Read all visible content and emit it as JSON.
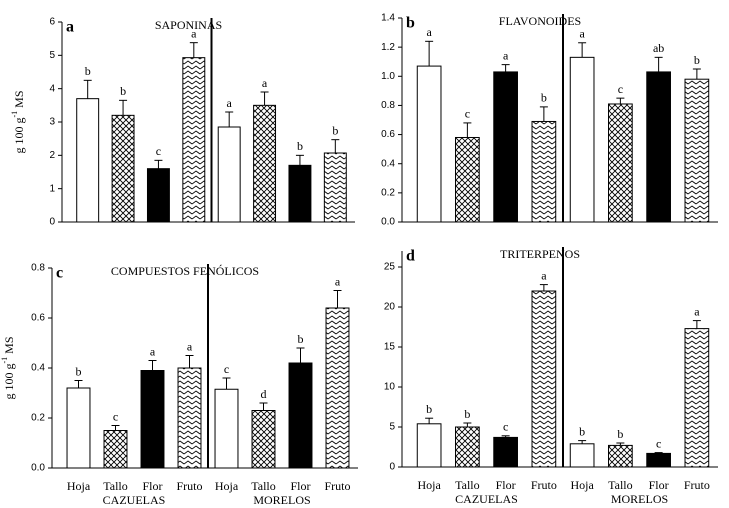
{
  "chart_data": [
    {
      "type": "bar",
      "panel_label": "a",
      "title": "SAPONINAS",
      "ylabel": "g 100 g",
      "ylabel_sup": "-1",
      "ylabel_end": "MS",
      "categories": [
        null,
        null,
        null,
        null,
        null,
        null,
        null,
        null
      ],
      "values": [
        3.7,
        3.2,
        1.6,
        4.93,
        2.85,
        3.5,
        1.7,
        2.07
      ],
      "errors": [
        0.55,
        0.45,
        0.25,
        0.45,
        0.45,
        0.4,
        0.3,
        0.4
      ],
      "letters": [
        "b",
        "b",
        "c",
        "a",
        "a",
        "a",
        "b",
        "b"
      ],
      "patterns": [
        "open",
        "crosshatch",
        "solid",
        "zigzag",
        "open",
        "crosshatch",
        "solid",
        "zigzag"
      ],
      "color": "#000000",
      "ylim": [
        0,
        6
      ],
      "yticks": [
        0,
        1,
        2,
        3,
        4,
        5,
        6
      ]
    },
    {
      "type": "bar",
      "panel_label": "b",
      "title": "FLAVONOIDES",
      "categories": [
        null,
        null,
        null,
        null,
        null,
        null,
        null,
        null
      ],
      "values": [
        1.07,
        0.58,
        1.03,
        0.69,
        1.13,
        0.81,
        1.03,
        0.98
      ],
      "errors": [
        0.17,
        0.1,
        0.05,
        0.1,
        0.1,
        0.04,
        0.1,
        0.07
      ],
      "letters": [
        "a",
        "c",
        "a",
        "b",
        "a",
        "c",
        "ab",
        "b"
      ],
      "patterns": [
        "open",
        "crosshatch",
        "solid",
        "zigzag",
        "open",
        "crosshatch",
        "solid",
        "zigzag"
      ],
      "color": "#000000",
      "ylim": [
        0,
        1.4
      ],
      "yticks": [
        {
          "value": 0,
          "label": "0.0"
        },
        0.2,
        0.4,
        0.6,
        0.8,
        {
          "value": 1,
          "label": "1.0"
        },
        1.2,
        1.4
      ]
    },
    {
      "type": "bar",
      "panel_label": "c",
      "title": "COMPUESTOS FENÓLICOS",
      "ylabel": "g 100 g",
      "ylabel_sup": "-1",
      "ylabel_end": "MS",
      "categories": [
        "Hoja",
        "Tallo",
        "Flor",
        "Fruto",
        "Hoja",
        "Tallo",
        "Flor",
        "Fruto"
      ],
      "groups": [
        "CAZUELAS",
        "MORELOS"
      ],
      "values": [
        0.32,
        0.15,
        0.39,
        0.4,
        0.315,
        0.23,
        0.42,
        0.64
      ],
      "errors": [
        0.03,
        0.02,
        0.04,
        0.05,
        0.045,
        0.03,
        0.06,
        0.07
      ],
      "letters": [
        "b",
        "c",
        "a",
        "a",
        "c",
        "d",
        "b",
        "a"
      ],
      "patterns": [
        "open",
        "crosshatch",
        "solid",
        "zigzag",
        "open",
        "crosshatch",
        "solid",
        "zigzag"
      ],
      "color": "#000000",
      "ylim": [
        0,
        0.8
      ],
      "yticks": [
        {
          "value": 0,
          "label": "0.0"
        },
        0.2,
        0.4,
        0.6,
        0.8
      ]
    },
    {
      "type": "bar",
      "panel_label": "d",
      "title": "TRITERPENOS",
      "categories": [
        "Hoja",
        "Tallo",
        "Flor",
        "Fruto",
        "Hoja",
        "Tallo",
        "Flor",
        "Fruto"
      ],
      "groups": [
        "CAZUELAS",
        "MORELOS"
      ],
      "values": [
        5.4,
        5.0,
        3.7,
        22,
        2.9,
        2.7,
        1.7,
        17.3
      ],
      "errors": [
        0.7,
        0.5,
        0.2,
        0.8,
        0.4,
        0.3,
        0.1,
        1.0
      ],
      "letters": [
        "b",
        "b",
        "c",
        "a",
        "b",
        "b",
        "c",
        "a"
      ],
      "patterns": [
        "open",
        "crosshatch",
        "solid",
        "zigzag",
        "open",
        "crosshatch",
        "solid",
        "zigzag"
      ],
      "color": "#000000",
      "ylim": [
        0,
        27
      ],
      "yticks": [
        0,
        5,
        10,
        15,
        20,
        25
      ]
    }
  ]
}
